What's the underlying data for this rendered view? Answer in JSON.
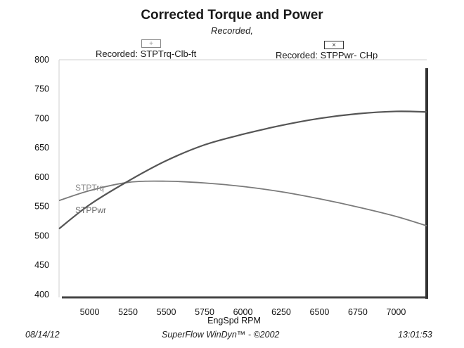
{
  "header": {
    "title": "Corrected Torque and Power",
    "subtitle": "Recorded,"
  },
  "legend": [
    {
      "label": "Recorded: STPTrq-Clb-ft",
      "marker": "+"
    },
    {
      "label": "Recorded: STPPwr- CHp",
      "marker": "×"
    }
  ],
  "footer": {
    "date": "08/14/12",
    "software": "SuperFlow WinDyn™ - ©2002",
    "time": "13:01:53"
  },
  "chart_data": {
    "type": "line",
    "title": "Corrected Torque and Power",
    "subtitle": "Recorded,",
    "xlabel": "EngSpd  RPM",
    "ylabel": "",
    "xlim": [
      4800,
      7200
    ],
    "ylim": [
      395,
      800
    ],
    "xticks": [
      5000,
      5250,
      5500,
      5750,
      6000,
      6250,
      6500,
      6750,
      7000
    ],
    "yticks": [
      400,
      450,
      500,
      550,
      600,
      650,
      700,
      750,
      800
    ],
    "grid": false,
    "legend_position": "top",
    "series": [
      {
        "name": "STPTrq",
        "legend_label": "Recorded: STPTrq-Clb-ft",
        "color": "#7a7a7a",
        "x": [
          4800,
          5000,
          5250,
          5500,
          5750,
          6000,
          6250,
          6500,
          6750,
          7000,
          7200
        ],
        "y": [
          560,
          577,
          591,
          593,
          590,
          584,
          575,
          563,
          549,
          533,
          517
        ]
      },
      {
        "name": "STPPwr",
        "legend_label": "Recorded: STPPwr- CHp",
        "color": "#555555",
        "x": [
          4800,
          5000,
          5250,
          5500,
          5750,
          6000,
          6250,
          6500,
          6750,
          7000,
          7200
        ],
        "y": [
          512,
          553,
          593,
          628,
          655,
          673,
          688,
          700,
          708,
          712,
          711
        ]
      }
    ]
  }
}
